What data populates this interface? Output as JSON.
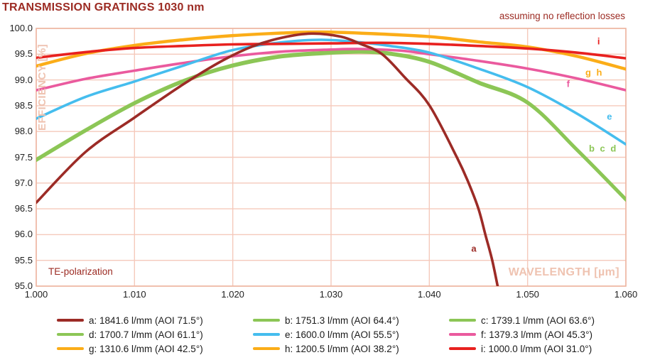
{
  "title": "TRANSMISSION GRATINGS 1030 nm",
  "subtitle": "assuming no reflection losses",
  "annotations": {
    "polarization": "TE-polarization"
  },
  "colors": {
    "title_text": "#9c2b23",
    "axis_label": "#efc3b1",
    "grid": "#f5c9bb",
    "plot_border": "#eeb7a3",
    "tick_text": "#212121",
    "legend_text": "#1a1a1a"
  },
  "chart_data": {
    "type": "line",
    "title": "TRANSMISSION GRATINGS 1030 nm",
    "xlabel": "WAVELENGTH [µm]",
    "ylabel": "EFFICIENCY [%]",
    "xlim": [
      1.0,
      1.06
    ],
    "ylim": [
      95.0,
      100.0
    ],
    "grid": true,
    "legend_position": "bottom",
    "x_ticks": [
      "1.000",
      "1.010",
      "1.020",
      "1.030",
      "1.040",
      "1.050",
      "1.060"
    ],
    "y_ticks": [
      "100.0",
      "99.5",
      "99.0",
      "98.5",
      "98.0",
      "97.5",
      "97.0",
      "96.5",
      "96.0",
      "95.5",
      "95.0"
    ],
    "series": [
      {
        "id": "a",
        "name": "a: 1841.6 l/mm (AOI 71.5°)",
        "color": "#9c2b26",
        "points": [
          [
            1.0,
            96.62
          ],
          [
            1.005,
            97.6
          ],
          [
            1.01,
            98.27
          ],
          [
            1.015,
            98.92
          ],
          [
            1.019,
            99.38
          ],
          [
            1.022,
            99.65
          ],
          [
            1.025,
            99.82
          ],
          [
            1.028,
            99.9
          ],
          [
            1.031,
            99.84
          ],
          [
            1.033,
            99.7
          ],
          [
            1.0352,
            99.5
          ],
          [
            1.0375,
            99.05
          ],
          [
            1.04,
            98.51
          ],
          [
            1.0428,
            97.5
          ],
          [
            1.044,
            97.0
          ],
          [
            1.045,
            96.5
          ],
          [
            1.0457,
            96.0
          ],
          [
            1.0464,
            95.5
          ],
          [
            1.047,
            94.95
          ]
        ]
      },
      {
        "id": "b",
        "name": "b: 1751.3 l/mm (AOI 64.4°)",
        "color": "#8cc656",
        "points": [
          [
            1.0,
            97.47
          ],
          [
            1.005,
            98.04
          ],
          [
            1.01,
            98.57
          ],
          [
            1.015,
            99.0
          ],
          [
            1.02,
            99.3
          ],
          [
            1.025,
            99.48
          ],
          [
            1.03,
            99.55
          ],
          [
            1.033,
            99.57
          ],
          [
            1.036,
            99.53
          ],
          [
            1.04,
            99.37
          ],
          [
            1.045,
            98.97
          ],
          [
            1.05,
            98.58
          ],
          [
            1.055,
            97.67
          ],
          [
            1.06,
            96.7
          ]
        ]
      },
      {
        "id": "c",
        "name": "c: 1739.1 l/mm (AOI 63.6°)",
        "color": "#8cc656",
        "points": [
          [
            1.0,
            97.45
          ],
          [
            1.005,
            98.02
          ],
          [
            1.01,
            98.55
          ],
          [
            1.015,
            98.98
          ],
          [
            1.02,
            99.28
          ],
          [
            1.025,
            99.46
          ],
          [
            1.03,
            99.53
          ],
          [
            1.033,
            99.55
          ],
          [
            1.036,
            99.51
          ],
          [
            1.04,
            99.35
          ],
          [
            1.045,
            98.95
          ],
          [
            1.05,
            98.56
          ],
          [
            1.055,
            97.65
          ],
          [
            1.06,
            96.68
          ]
        ]
      },
      {
        "id": "d",
        "name": "d: 1700.7 l/mm (AOI 61.1°)",
        "color": "#8cc656",
        "points": [
          [
            1.0,
            97.43
          ],
          [
            1.005,
            98.0
          ],
          [
            1.01,
            98.53
          ],
          [
            1.015,
            98.96
          ],
          [
            1.02,
            99.26
          ],
          [
            1.025,
            99.44
          ],
          [
            1.03,
            99.51
          ],
          [
            1.033,
            99.53
          ],
          [
            1.036,
            99.49
          ],
          [
            1.04,
            99.33
          ],
          [
            1.045,
            98.93
          ],
          [
            1.05,
            98.54
          ],
          [
            1.055,
            97.63
          ],
          [
            1.06,
            96.66
          ]
        ]
      },
      {
        "id": "e",
        "name": "e: 1600.0 l/mm (AOI 55.5°)",
        "color": "#45bdee",
        "points": [
          [
            1.0,
            98.25
          ],
          [
            1.005,
            98.67
          ],
          [
            1.01,
            98.97
          ],
          [
            1.015,
            99.28
          ],
          [
            1.02,
            99.58
          ],
          [
            1.025,
            99.73
          ],
          [
            1.029,
            99.78
          ],
          [
            1.033,
            99.73
          ],
          [
            1.036,
            99.66
          ],
          [
            1.04,
            99.53
          ],
          [
            1.045,
            99.22
          ],
          [
            1.05,
            98.86
          ],
          [
            1.055,
            98.35
          ],
          [
            1.06,
            97.75
          ]
        ]
      },
      {
        "id": "f",
        "name": "f: 1379.3 l/mm (AOI 45.3°)",
        "color": "#ea5a9e",
        "points": [
          [
            1.0,
            98.8
          ],
          [
            1.005,
            99.02
          ],
          [
            1.01,
            99.18
          ],
          [
            1.015,
            99.33
          ],
          [
            1.02,
            99.46
          ],
          [
            1.025,
            99.55
          ],
          [
            1.03,
            99.59
          ],
          [
            1.033,
            99.6
          ],
          [
            1.037,
            99.57
          ],
          [
            1.04,
            99.5
          ],
          [
            1.045,
            99.37
          ],
          [
            1.05,
            99.22
          ],
          [
            1.055,
            99.03
          ],
          [
            1.06,
            98.8
          ]
        ]
      },
      {
        "id": "g",
        "name": "g: 1310.6 l/mm (AOI 42.5°)",
        "color": "#fbad18",
        "points": [
          [
            1.0,
            99.26
          ],
          [
            1.005,
            99.5
          ],
          [
            1.01,
            99.66
          ],
          [
            1.015,
            99.77
          ],
          [
            1.02,
            99.85
          ],
          [
            1.025,
            99.9
          ],
          [
            1.029,
            99.92
          ],
          [
            1.034,
            99.89
          ],
          [
            1.04,
            99.83
          ],
          [
            1.045,
            99.73
          ],
          [
            1.05,
            99.63
          ],
          [
            1.055,
            99.45
          ],
          [
            1.06,
            99.2
          ]
        ]
      },
      {
        "id": "h",
        "name": "h: 1200.5 l/mm (AOI 38.2°)",
        "color": "#fbad18",
        "points": [
          [
            1.0,
            99.28
          ],
          [
            1.005,
            99.52
          ],
          [
            1.01,
            99.68
          ],
          [
            1.015,
            99.79
          ],
          [
            1.02,
            99.87
          ],
          [
            1.025,
            99.92
          ],
          [
            1.029,
            99.94
          ],
          [
            1.034,
            99.91
          ],
          [
            1.04,
            99.85
          ],
          [
            1.045,
            99.75
          ],
          [
            1.05,
            99.65
          ],
          [
            1.055,
            99.47
          ],
          [
            1.06,
            99.22
          ]
        ]
      },
      {
        "id": "i",
        "name": "i: 1000.0 l/mm (AOI 31.0°)",
        "color": "#e8211f",
        "points": [
          [
            1.0,
            99.43
          ],
          [
            1.005,
            99.54
          ],
          [
            1.01,
            99.62
          ],
          [
            1.015,
            99.66
          ],
          [
            1.02,
            99.69
          ],
          [
            1.025,
            99.7
          ],
          [
            1.03,
            99.71
          ],
          [
            1.035,
            99.72
          ],
          [
            1.04,
            99.7
          ],
          [
            1.045,
            99.66
          ],
          [
            1.05,
            99.61
          ],
          [
            1.055,
            99.53
          ],
          [
            1.06,
            99.42
          ]
        ]
      }
    ],
    "draw_order": [
      "d",
      "c",
      "b",
      "f",
      "e",
      "h",
      "g",
      "i",
      "a"
    ],
    "inline_labels": [
      {
        "text": "a",
        "series": "a",
        "x": 1.0446,
        "y": 95.73
      },
      {
        "text": "b c d",
        "series": "c",
        "x": 1.0577,
        "y": 97.67
      },
      {
        "text": "e",
        "series": "e",
        "x": 1.0584,
        "y": 98.29
      },
      {
        "text": "f",
        "series": "f",
        "x": 1.0542,
        "y": 98.93
      },
      {
        "text": "g h",
        "series": "g",
        "x": 1.0568,
        "y": 99.15
      },
      {
        "text": "i",
        "series": "i",
        "x": 1.0573,
        "y": 99.75
      }
    ]
  }
}
